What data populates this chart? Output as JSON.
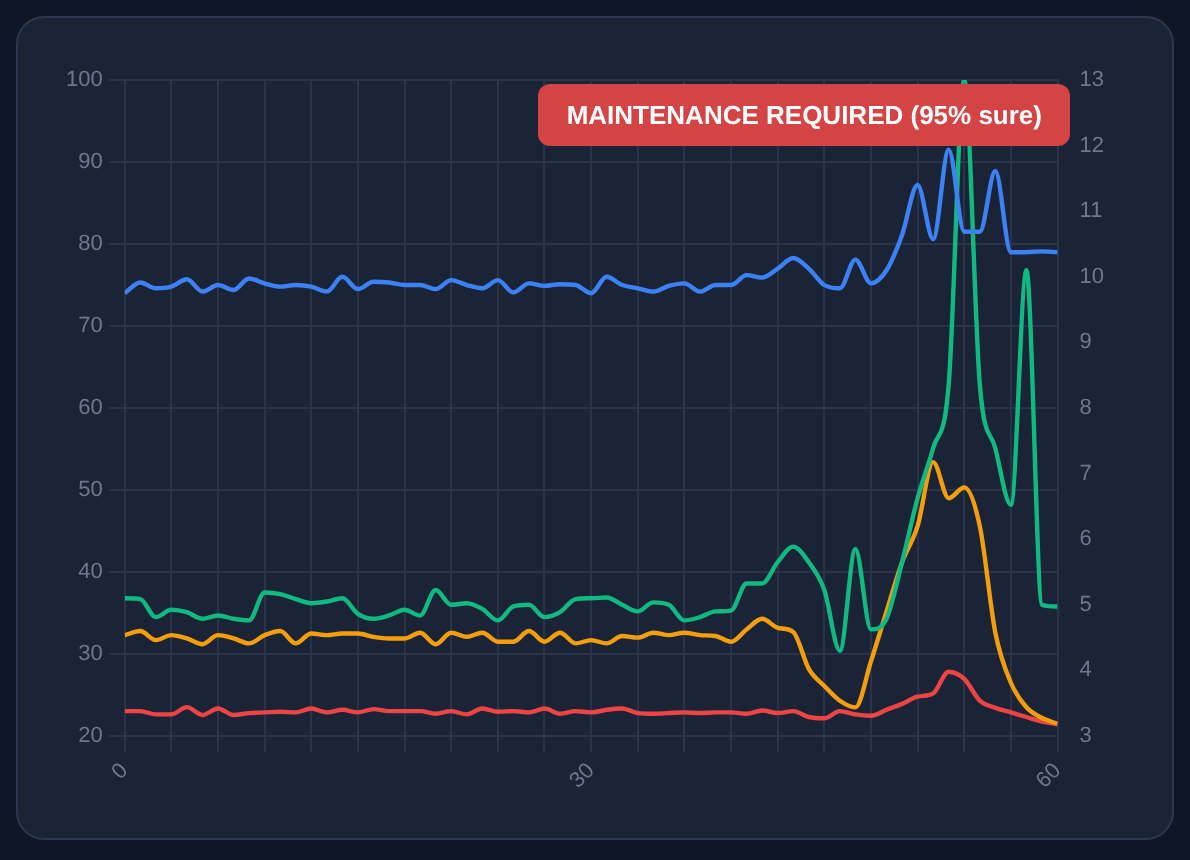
{
  "chart_data": {
    "type": "line",
    "x": [
      0,
      1,
      2,
      3,
      4,
      5,
      6,
      7,
      8,
      9,
      10,
      11,
      12,
      13,
      14,
      15,
      16,
      17,
      18,
      19,
      20,
      21,
      22,
      23,
      24,
      25,
      26,
      27,
      28,
      29,
      30,
      31,
      32,
      33,
      34,
      35,
      36,
      37,
      38,
      39,
      40,
      41,
      42,
      43,
      44,
      45,
      46,
      47,
      48,
      49,
      50,
      51,
      52,
      53,
      54,
      55,
      56,
      57,
      58,
      59,
      60
    ],
    "series": [
      {
        "color": "#3b82f6",
        "values": [
          74,
          75.3,
          74.6,
          74.8,
          75.7,
          74.2,
          75,
          74.4,
          75.8,
          75.2,
          74.8,
          75,
          74.8,
          74.2,
          76,
          74.5,
          75.4,
          75.3,
          75,
          75,
          74.5,
          75.6,
          75,
          74.6,
          75.6,
          74.1,
          75.2,
          74.9,
          75.1,
          75,
          74,
          76,
          75,
          74.6,
          74.2,
          74.9,
          75.2,
          74.2,
          75,
          75,
          76.2,
          75.9,
          77,
          78.3,
          77,
          75,
          74.6,
          78.1,
          75.2,
          76.8,
          81.1,
          87.2,
          80.6,
          91.5,
          81.5,
          81.5,
          88.9,
          79,
          79,
          79.1,
          79
        ]
      },
      {
        "color": "#10b981",
        "values": [
          36.8,
          36.7,
          34.5,
          35.4,
          35.1,
          34.3,
          34.7,
          34.3,
          34.1,
          37.5,
          37.3,
          36.7,
          36.2,
          36.4,
          36.8,
          34.9,
          34.3,
          34.7,
          35.4,
          34.7,
          37.8,
          36,
          36.2,
          35.5,
          34.1,
          35.8,
          36,
          34.5,
          35.1,
          36.7,
          36.8,
          36.9,
          36,
          35.2,
          36.3,
          36,
          34.1,
          34.5,
          35.2,
          35.3,
          38.6,
          38.6,
          41.2,
          43.1,
          41.2,
          37.8,
          30.4,
          42.8,
          33,
          34.3,
          41.2,
          49,
          55.1,
          62.9,
          100,
          62.9,
          55.1,
          48.2,
          76.8,
          36,
          35.8
        ]
      },
      {
        "color": "#f59e0b",
        "values": [
          32.3,
          32.8,
          31.7,
          32.3,
          31.9,
          31.2,
          32.3,
          31.9,
          31.3,
          32.3,
          32.8,
          31.3,
          32.5,
          32.3,
          32.5,
          32.5,
          32.1,
          31.9,
          31.9,
          32.6,
          31.2,
          32.6,
          32.1,
          32.6,
          31.5,
          31.5,
          32.8,
          31.5,
          32.6,
          31.3,
          31.7,
          31.3,
          32.2,
          32,
          32.6,
          32.3,
          32.6,
          32.3,
          32.2,
          31.5,
          33,
          34.3,
          33.2,
          32.7,
          28.2,
          26.1,
          24.3,
          23.5,
          29.1,
          35.2,
          41.2,
          45.6,
          53.4,
          49,
          50.3,
          45.6,
          32.6,
          26.5,
          23.5,
          22.2,
          21.5
        ]
      },
      {
        "color": "#ef4444",
        "axis": "y2",
        "values": [
          3.38,
          3.38,
          3.33,
          3.33,
          3.44,
          3.32,
          3.42,
          3.32,
          3.35,
          3.36,
          3.37,
          3.36,
          3.42,
          3.36,
          3.4,
          3.36,
          3.41,
          3.38,
          3.38,
          3.38,
          3.34,
          3.38,
          3.33,
          3.42,
          3.37,
          3.38,
          3.36,
          3.42,
          3.34,
          3.38,
          3.36,
          3.4,
          3.42,
          3.35,
          3.34,
          3.35,
          3.36,
          3.35,
          3.36,
          3.36,
          3.34,
          3.39,
          3.35,
          3.38,
          3.29,
          3.27,
          3.38,
          3.33,
          3.31,
          3.4,
          3.49,
          3.6,
          3.65,
          3.98,
          3.87,
          3.54,
          3.43,
          3.36,
          3.29,
          3.22,
          3.18
        ]
      }
    ],
    "xlim": [
      0,
      60
    ],
    "xticks": [
      0,
      {
        "value": 3,
        "label": null
      },
      {
        "value": 6,
        "label": null
      },
      {
        "value": 9,
        "label": null
      },
      {
        "value": 12,
        "label": null
      },
      {
        "value": 15,
        "label": null
      },
      {
        "value": 18,
        "label": null
      },
      {
        "value": 21,
        "label": null
      },
      {
        "value": 24,
        "label": null
      },
      {
        "value": 27,
        "label": null
      },
      30,
      {
        "value": 33,
        "label": null
      },
      {
        "value": 36,
        "label": null
      },
      {
        "value": 39,
        "label": null
      },
      {
        "value": 42,
        "label": null
      },
      {
        "value": 45,
        "label": null
      },
      {
        "value": 48,
        "label": null
      },
      {
        "value": 51,
        "label": null
      },
      {
        "value": 54,
        "label": null
      },
      {
        "value": 57,
        "label": null
      },
      60
    ],
    "ylim": [
      20,
      100
    ],
    "yticks": [
      20,
      30,
      40,
      50,
      60,
      70,
      80,
      90,
      100
    ],
    "y2lim": [
      3,
      13
    ],
    "y2ticks": [
      3,
      4,
      5,
      6,
      7,
      8,
      9,
      10,
      11,
      12,
      13
    ],
    "grid": true,
    "marker": "none",
    "line_style": "solid",
    "annotations": [
      "MAINTENANCE REQUIRED (95% sure)"
    ]
  }
}
